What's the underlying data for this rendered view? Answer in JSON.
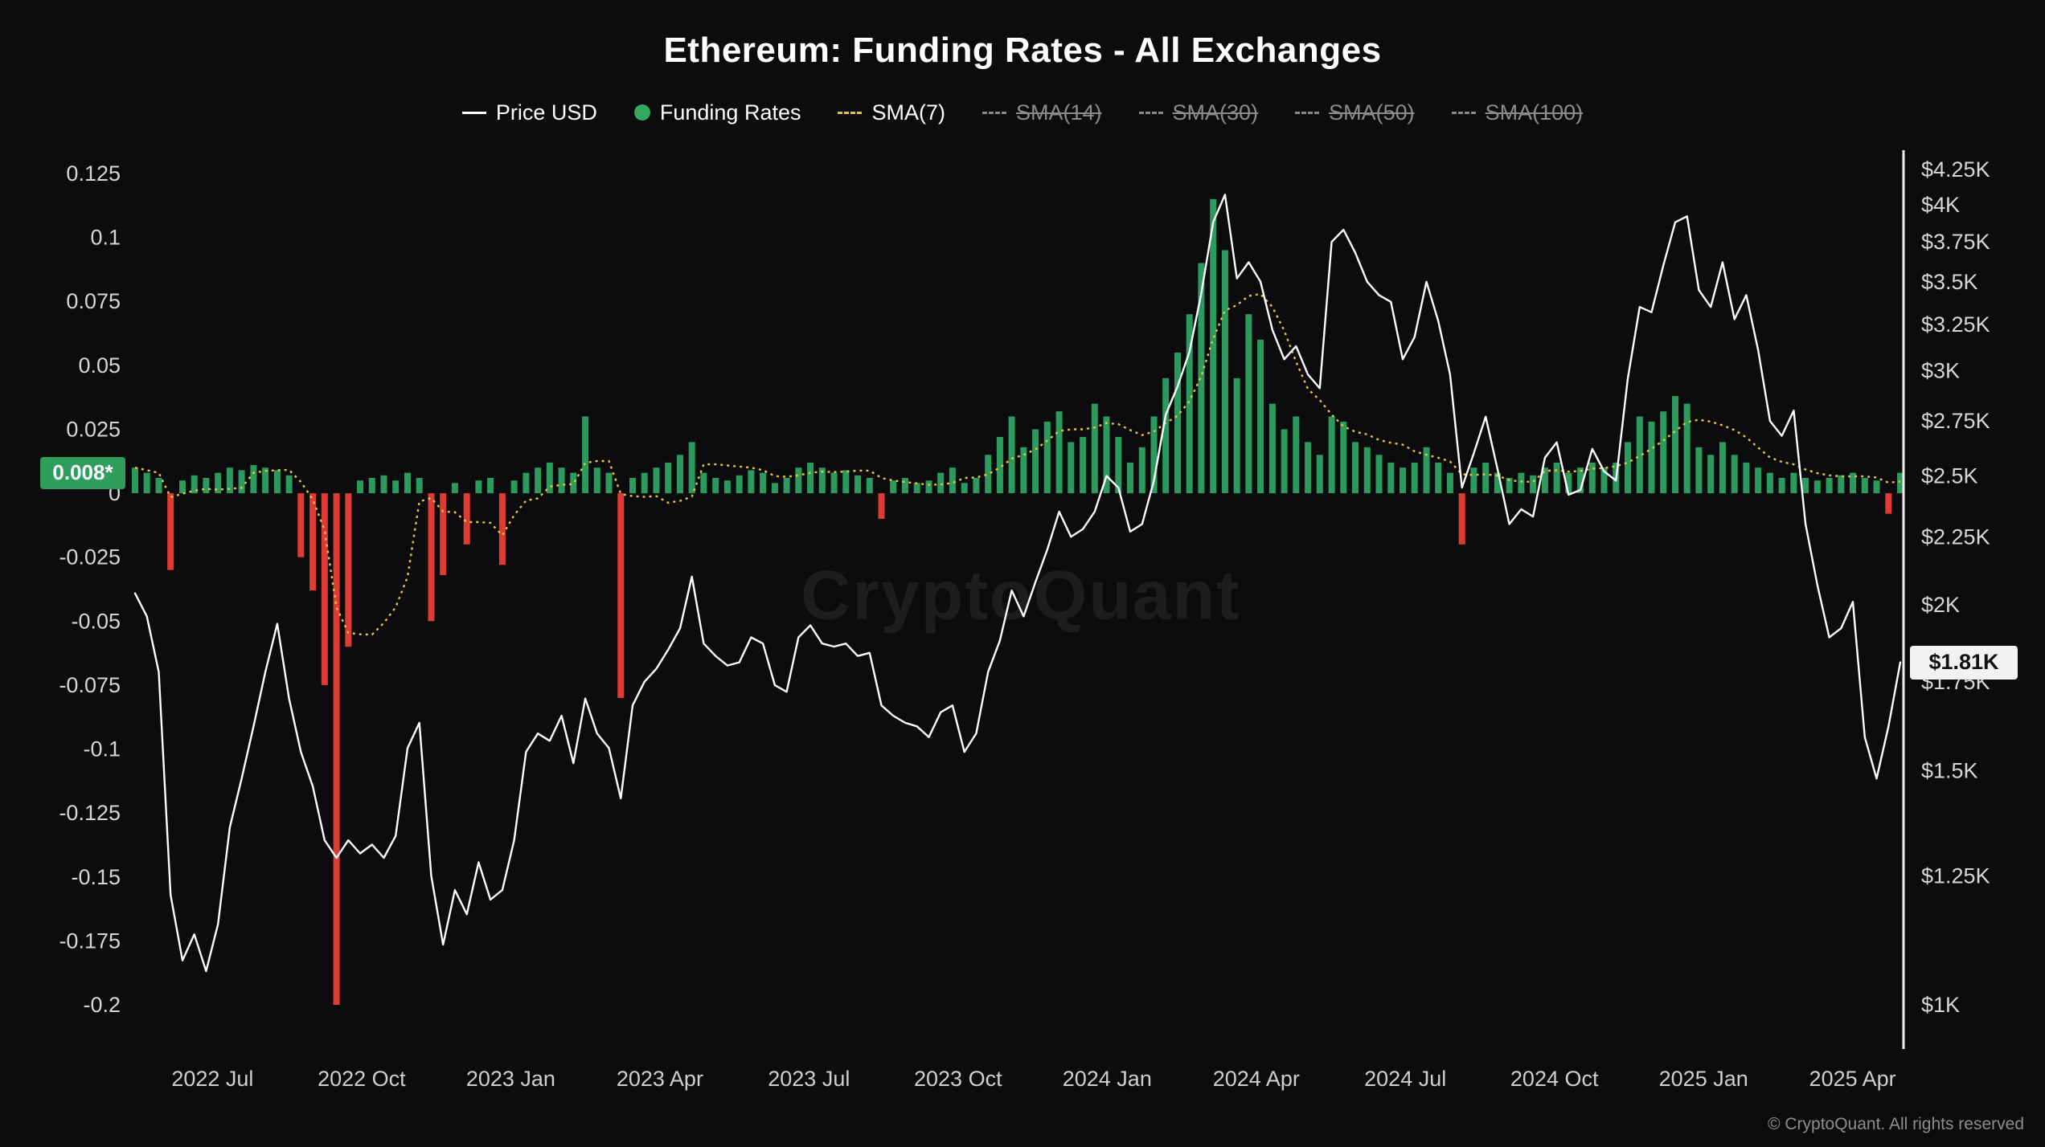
{
  "title": "Ethereum: Funding Rates - All Exchanges",
  "watermark": "CryptoQuant",
  "footer": {
    "copyright": "© CryptoQuant. All rights reserved"
  },
  "legend": {
    "items": [
      {
        "label": "Price USD",
        "type": "line",
        "color": "#ffffff",
        "active": true
      },
      {
        "label": "Funding Rates",
        "type": "dot",
        "color": "#34a85c",
        "active": true
      },
      {
        "label": "SMA(7)",
        "type": "dashed",
        "color": "#e5c33c",
        "active": true
      },
      {
        "label": "SMA(14)",
        "type": "dashed",
        "color": "#8b8b8b",
        "active": false
      },
      {
        "label": "SMA(30)",
        "type": "dashed",
        "color": "#8b8b8b",
        "active": false
      },
      {
        "label": "SMA(50)",
        "type": "dashed",
        "color": "#8b8b8b",
        "active": false
      },
      {
        "label": "SMA(100)",
        "type": "dashed",
        "color": "#8b8b8b",
        "active": false
      }
    ]
  },
  "badges": {
    "funding_current": {
      "label": "0.008*",
      "value": 0.008,
      "color": "#2f9e5c"
    },
    "price_current": {
      "label": "$1.81K",
      "value": 1810,
      "color": "#f2f2f2"
    }
  },
  "chart_data": {
    "type": "combo",
    "title": "Ethereum: Funding Rates - All Exchanges",
    "x_unit": "decimal_year",
    "x_start": 2022.37,
    "x_end": 2025.33,
    "x_ticks": [
      {
        "t": 2022.5,
        "label": "2022 Jul"
      },
      {
        "t": 2022.75,
        "label": "2022 Oct"
      },
      {
        "t": 2023.0,
        "label": "2023 Jan"
      },
      {
        "t": 2023.25,
        "label": "2023 Apr"
      },
      {
        "t": 2023.5,
        "label": "2023 Jul"
      },
      {
        "t": 2023.75,
        "label": "2023 Oct"
      },
      {
        "t": 2024.0,
        "label": "2024 Jan"
      },
      {
        "t": 2024.25,
        "label": "2024 Apr"
      },
      {
        "t": 2024.5,
        "label": "2024 Jul"
      },
      {
        "t": 2024.75,
        "label": "2024 Oct"
      },
      {
        "t": 2025.0,
        "label": "2025 Jan"
      },
      {
        "t": 2025.25,
        "label": "2025 Apr"
      }
    ],
    "left_axis": {
      "title": "Funding Rates",
      "scale": "linear",
      "min": -0.2,
      "max": 0.125,
      "ticks": [
        {
          "v": 0.125,
          "label": "0.125"
        },
        {
          "v": 0.1,
          "label": "0.1"
        },
        {
          "v": 0.075,
          "label": "0.075"
        },
        {
          "v": 0.05,
          "label": "0.05"
        },
        {
          "v": 0.025,
          "label": "0.025"
        },
        {
          "v": 0,
          "label": "0"
        },
        {
          "v": -0.025,
          "label": "-0.025"
        },
        {
          "v": -0.05,
          "label": "-0.05"
        },
        {
          "v": -0.075,
          "label": "-0.075"
        },
        {
          "v": -0.1,
          "label": "-0.1"
        },
        {
          "v": -0.125,
          "label": "-0.125"
        },
        {
          "v": -0.15,
          "label": "-0.15"
        },
        {
          "v": -0.175,
          "label": "-0.175"
        },
        {
          "v": -0.2,
          "label": "-0.2"
        }
      ]
    },
    "right_axis": {
      "title": "Price USD",
      "scale": "log",
      "min": 1000,
      "max": 4250,
      "ticks": [
        {
          "v": 4250,
          "label": "$4.25K"
        },
        {
          "v": 4000,
          "label": "$4K"
        },
        {
          "v": 3750,
          "label": "$3.75K"
        },
        {
          "v": 3500,
          "label": "$3.5K"
        },
        {
          "v": 3250,
          "label": "$3.25K"
        },
        {
          "v": 3000,
          "label": "$3K"
        },
        {
          "v": 2750,
          "label": "$2.75K"
        },
        {
          "v": 2500,
          "label": "$2.5K"
        },
        {
          "v": 2250,
          "label": "$2.25K"
        },
        {
          "v": 2000,
          "label": "$2K"
        },
        {
          "v": 1750,
          "label": "$1.75K"
        },
        {
          "v": 1500,
          "label": "$1.5K"
        },
        {
          "v": 1250,
          "label": "$1.25K"
        },
        {
          "v": 1000,
          "label": "$1K"
        }
      ]
    },
    "series": [
      {
        "name": "Price USD",
        "type": "line",
        "axis": "right",
        "color": "#ffffff",
        "values": [
          2040,
          1960,
          1780,
          1210,
          1080,
          1130,
          1060,
          1150,
          1360,
          1480,
          1620,
          1780,
          1935,
          1700,
          1550,
          1460,
          1330,
          1290,
          1330,
          1300,
          1320,
          1290,
          1340,
          1560,
          1630,
          1250,
          1110,
          1220,
          1170,
          1280,
          1200,
          1220,
          1330,
          1550,
          1600,
          1580,
          1650,
          1520,
          1700,
          1600,
          1560,
          1430,
          1680,
          1750,
          1790,
          1850,
          1920,
          2100,
          1870,
          1830,
          1800,
          1810,
          1890,
          1870,
          1740,
          1720,
          1890,
          1930,
          1870,
          1860,
          1870,
          1830,
          1840,
          1680,
          1650,
          1630,
          1620,
          1590,
          1660,
          1680,
          1550,
          1600,
          1780,
          1880,
          2050,
          1960,
          2080,
          2200,
          2350,
          2250,
          2280,
          2350,
          2500,
          2450,
          2270,
          2300,
          2480,
          2780,
          2920,
          3100,
          3430,
          3880,
          4070,
          3520,
          3620,
          3500,
          3220,
          3060,
          3130,
          2980,
          2910,
          3750,
          3830,
          3680,
          3500,
          3420,
          3380,
          3060,
          3180,
          3500,
          3270,
          2980,
          2450,
          2600,
          2770,
          2530,
          2300,
          2360,
          2330,
          2580,
          2650,
          2420,
          2440,
          2620,
          2520,
          2480,
          2960,
          3350,
          3320,
          3600,
          3880,
          3920,
          3450,
          3350,
          3620,
          3280,
          3420,
          3110,
          2750,
          2680,
          2800,
          2300,
          2070,
          1890,
          1920,
          2010,
          1590,
          1480,
          1620,
          1810
        ]
      },
      {
        "name": "Funding Rates",
        "type": "bar",
        "axis": "left",
        "color_pos": "#2c9a5d",
        "color_neg": "#dd3b34",
        "values": [
          0.01,
          0.008,
          0.006,
          -0.03,
          0.005,
          0.007,
          0.006,
          0.008,
          0.01,
          0.009,
          0.011,
          0.01,
          0.009,
          0.007,
          -0.025,
          -0.038,
          -0.075,
          -0.2,
          -0.06,
          0.005,
          0.006,
          0.007,
          0.005,
          0.008,
          0.006,
          -0.05,
          -0.032,
          0.004,
          -0.02,
          0.005,
          0.006,
          -0.028,
          0.005,
          0.008,
          0.01,
          0.012,
          0.01,
          0.008,
          0.03,
          0.01,
          0.008,
          -0.08,
          0.006,
          0.008,
          0.01,
          0.012,
          0.015,
          0.02,
          0.008,
          0.006,
          0.005,
          0.007,
          0.009,
          0.008,
          0.004,
          0.006,
          0.01,
          0.012,
          0.01,
          0.008,
          0.009,
          0.007,
          0.006,
          -0.01,
          0.005,
          0.006,
          0.004,
          0.005,
          0.008,
          0.01,
          0.004,
          0.006,
          0.015,
          0.022,
          0.03,
          0.018,
          0.025,
          0.028,
          0.032,
          0.02,
          0.022,
          0.035,
          0.03,
          0.022,
          0.012,
          0.018,
          0.03,
          0.045,
          0.055,
          0.07,
          0.09,
          0.115,
          0.095,
          0.045,
          0.07,
          0.06,
          0.035,
          0.025,
          0.03,
          0.02,
          0.015,
          0.03,
          0.028,
          0.02,
          0.018,
          0.015,
          0.012,
          0.01,
          0.012,
          0.018,
          0.012,
          0.008,
          -0.02,
          0.01,
          0.012,
          0.008,
          0.006,
          0.008,
          0.007,
          0.01,
          0.012,
          0.008,
          0.01,
          0.012,
          0.01,
          0.012,
          0.02,
          0.03,
          0.028,
          0.032,
          0.038,
          0.035,
          0.018,
          0.015,
          0.02,
          0.015,
          0.012,
          0.01,
          0.008,
          0.006,
          0.008,
          0.006,
          0.005,
          0.006,
          0.007,
          0.008,
          0.006,
          0.005,
          -0.008,
          0.008
        ]
      },
      {
        "name": "SMA(7)",
        "type": "line",
        "style": "dashed",
        "axis": "left",
        "color": "#e5c33c",
        "derived_from": "Funding Rates",
        "window": 7
      }
    ]
  }
}
